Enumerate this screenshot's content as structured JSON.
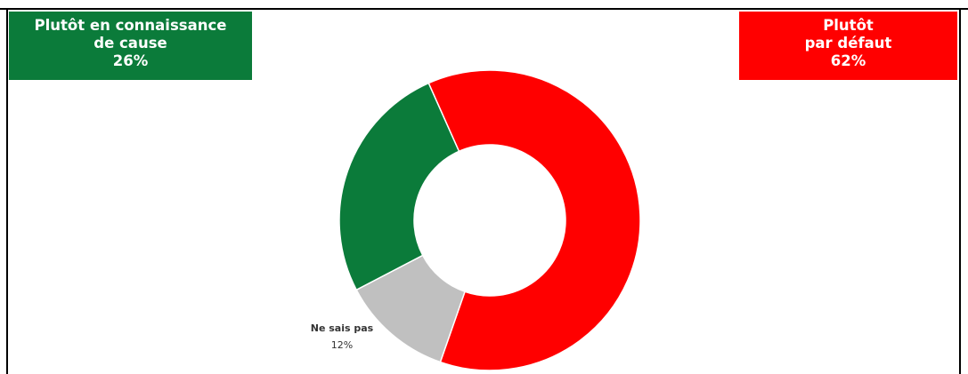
{
  "chart_data": {
    "type": "pie",
    "donut": true,
    "slices": [
      {
        "label": "Plutôt par défaut",
        "value": 62,
        "color": "#ff0000"
      },
      {
        "label": "Ne sais pas",
        "value": 12,
        "color": "#c0c0c0"
      },
      {
        "label": "Plutôt en connaissance de cause",
        "value": 26,
        "color": "#0b7b3a"
      }
    ],
    "callouts": {
      "left": {
        "lines": [
          "Plutôt en connaissance",
          "de cause",
          "26%"
        ],
        "color": "#0b7b3a"
      },
      "right": {
        "lines": [
          "Plutôt",
          "par défaut",
          "62%"
        ],
        "color": "#ff0000"
      },
      "small": {
        "lines": [
          "Ne sais pas",
          "12%"
        ]
      }
    }
  }
}
